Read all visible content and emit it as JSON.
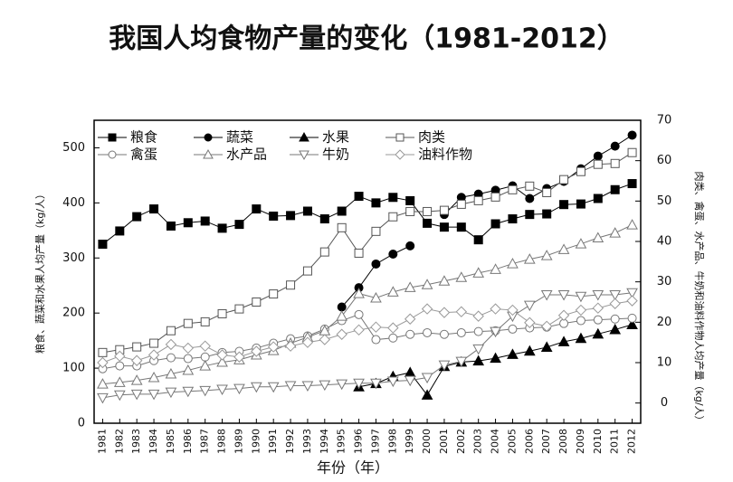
{
  "chart_data": {
    "type": "line",
    "title": "我国人均食物产量的变化（1981-2012）",
    "x_label": "年份（年）",
    "y_label": "粮食、蔬菜和水果人均产量（kg/人）",
    "y2_label": "肉类、禽蛋、水产品、牛奶和油料作物人均产量（kg/人）",
    "categories": [
      "1981",
      "1982",
      "1983",
      "1984",
      "1985",
      "1986",
      "1987",
      "1988",
      "1989",
      "1990",
      "1991",
      "1992",
      "1993",
      "1994",
      "1995",
      "1996",
      "1997",
      "1998",
      "1999",
      "2000",
      "2001",
      "2002",
      "2003",
      "2004",
      "2005",
      "2006",
      "2007",
      "2008",
      "2009",
      "2010",
      "2011",
      "2012"
    ],
    "ylim": [
      0,
      550
    ],
    "yticks": [
      0,
      100,
      200,
      300,
      400,
      500
    ],
    "y2lim": [
      -5,
      70
    ],
    "y2ticks": [
      0,
      10,
      20,
      30,
      40,
      50,
      60,
      70
    ],
    "legend": "upper left",
    "series": [
      {
        "name": "粮食",
        "color": "#000000",
        "marker": "square",
        "filled": true,
        "values": [
          325,
          349,
          375,
          389,
          358,
          364,
          367,
          354,
          361,
          389,
          376,
          377,
          385,
          371,
          385,
          412,
          400,
          410,
          404,
          363,
          356,
          356,
          333,
          362,
          371,
          379,
          380,
          397,
          398,
          408,
          424,
          435
        ]
      },
      {
        "name": "蔬菜",
        "color": "#000000",
        "marker": "circle",
        "filled": true,
        "values": [
          null,
          null,
          null,
          null,
          null,
          null,
          null,
          null,
          null,
          null,
          null,
          null,
          null,
          null,
          211,
          246,
          289,
          307,
          322,
          null,
          379,
          410,
          416,
          423,
          431,
          408,
          426,
          439,
          462,
          485,
          503,
          523
        ]
      },
      {
        "name": "水果",
        "color": "#000000",
        "marker": "triangle",
        "filled": true,
        "values": [
          null,
          null,
          null,
          null,
          null,
          null,
          null,
          null,
          null,
          null,
          null,
          null,
          null,
          null,
          null,
          66,
          72,
          85,
          92,
          51,
          103,
          111,
          113,
          118,
          125,
          131,
          138,
          148,
          154,
          162,
          170,
          179
        ]
      },
      {
        "name": "肉类",
        "color": "#555555",
        "marker": "square",
        "filled": false,
        "axis": "y2",
        "values": [
          12.5,
          13.2,
          13.9,
          14.8,
          17.9,
          19.7,
          20.1,
          22.1,
          23.3,
          25,
          27,
          29.2,
          32.7,
          37.4,
          43.4,
          37.1,
          42.5,
          46.1,
          47.4,
          47.4,
          47.7,
          49.2,
          50.1,
          51,
          52.8,
          53.7,
          52.1,
          55.3,
          57.3,
          59.1,
          59.3,
          62
        ]
      },
      {
        "name": "禽蛋",
        "color": "#777777",
        "marker": "circle",
        "filled": false,
        "axis": "y2",
        "values": [
          8.5,
          9.2,
          9.2,
          10.5,
          11.2,
          11,
          11.4,
          12.5,
          12.8,
          13.6,
          14.8,
          15.9,
          16.6,
          18.3,
          20.4,
          21.9,
          15.7,
          16.1,
          17,
          17.4,
          17,
          17.4,
          17.7,
          17.9,
          18.3,
          18.6,
          18.8,
          19.7,
          20.4,
          20.6,
          20.8,
          21
        ]
      },
      {
        "name": "水产品",
        "color": "#777777",
        "marker": "triangle",
        "filled": false,
        "axis": "y2",
        "values": [
          4.7,
          5.1,
          5.6,
          6.3,
          7.2,
          8.1,
          9.2,
          10.1,
          10.7,
          11.9,
          13,
          14.8,
          16.3,
          17.9,
          21.5,
          27.1,
          26,
          27.5,
          28.6,
          29.3,
          30.2,
          31.1,
          32.2,
          33.1,
          34.5,
          35.6,
          36.5,
          38,
          39.4,
          40.9,
          42.1,
          44.1
        ]
      },
      {
        "name": "牛奶",
        "color": "#777777",
        "marker": "triangle-down",
        "filled": false,
        "axis": "y2",
        "values": [
          1.3,
          2,
          2.2,
          2.2,
          2.7,
          2.9,
          3.1,
          3.4,
          3.6,
          4,
          4,
          4.3,
          4.3,
          4.5,
          4.7,
          4.9,
          4.9,
          5.4,
          5.6,
          6.3,
          9.4,
          10.3,
          13.4,
          17.7,
          21.5,
          24.2,
          26.8,
          26.8,
          26.4,
          26.8,
          26.8,
          27.3
        ]
      },
      {
        "name": "油料作物",
        "color": "#999999",
        "marker": "diamond",
        "filled": false,
        "axis": "y2",
        "values": [
          10,
          11.6,
          10.5,
          11.9,
          14.5,
          13.6,
          14.1,
          11.9,
          11.4,
          12.8,
          13.9,
          14.1,
          15,
          15.7,
          17,
          18.1,
          18.8,
          18.6,
          20.8,
          23.3,
          22.4,
          22.6,
          21.5,
          23.3,
          23,
          19.9,
          19,
          21.7,
          23,
          23.5,
          24.6,
          25.3
        ]
      }
    ]
  }
}
